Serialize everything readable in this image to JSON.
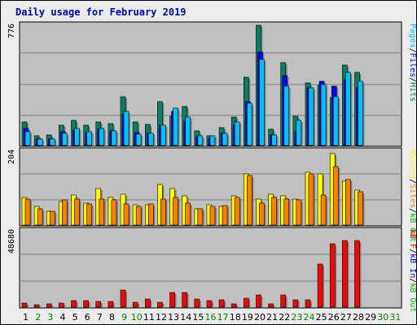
{
  "chart_data": {
    "type": "bar",
    "title": "Daily usage for February 2019",
    "days": [
      "1",
      "2",
      "3",
      "4",
      "5",
      "6",
      "7",
      "8",
      "9",
      "10",
      "11",
      "12",
      "13",
      "14",
      "15",
      "16",
      "17",
      "18",
      "19",
      "20",
      "21",
      "22",
      "23",
      "24",
      "25",
      "26",
      "27",
      "28",
      "29",
      "30",
      "31"
    ],
    "weekend_days": [
      2,
      3,
      9,
      10,
      16,
      17,
      23,
      24,
      30,
      31
    ],
    "colors": {
      "pages": "#00c0ff",
      "files": "#0000ff",
      "hits": "#008060",
      "sites": "#ff8000",
      "visits": "#ffff00",
      "kbf": "#ff0000",
      "kbin": "#0000ff",
      "kbout": "#00c000",
      "title": "#0000a0",
      "plot_bg": "#c0c0c0",
      "frame_bg": "#ececec",
      "weekday_label": "#000000",
      "weekend_label": "#008000"
    },
    "panels": [
      {
        "max_label": "776",
        "max": 776,
        "legend": [
          {
            "text": "Pages",
            "color": "#00c0ff"
          },
          {
            "text": "/",
            "color": "#000000"
          },
          {
            "text": "Files",
            "color": "#0000ff"
          },
          {
            "text": "/",
            "color": "#000000"
          },
          {
            "text": "Hits",
            "color": "#008060"
          }
        ],
        "series": [
          {
            "name": "Hits",
            "color": "#008060",
            "values": [
              150,
              60,
              70,
              130,
              160,
              130,
              150,
              140,
              310,
              150,
              135,
              280,
              190,
              250,
              95,
              65,
              115,
              180,
              440,
              770,
              105,
              530,
              190,
              400,
              385,
              305,
              515,
              470,
              0,
              0,
              0
            ]
          },
          {
            "name": "Files",
            "color": "#0000ff",
            "values": [
              110,
              40,
              40,
              90,
              100,
              85,
              105,
              95,
              200,
              85,
              80,
              130,
              220,
              155,
              55,
              45,
              80,
              130,
              280,
              600,
              70,
              450,
              90,
              370,
              410,
              380,
              420,
              370,
              0,
              0,
              0
            ]
          },
          {
            "name": "Pages",
            "color": "#00c0ff",
            "values": [
              90,
              40,
              40,
              80,
              110,
              90,
              110,
              95,
              220,
              75,
              80,
              130,
              240,
              180,
              60,
              60,
              80,
              150,
              270,
              550,
              70,
              380,
              160,
              370,
              390,
              310,
              470,
              410,
              0,
              0,
              0
            ]
          }
        ]
      },
      {
        "max_label": "204",
        "max": 204,
        "legend": [
          {
            "text": "Visits",
            "color": "#ffff00"
          },
          {
            "text": "/",
            "color": "#000000"
          },
          {
            "text": "Sites",
            "color": "#ff8000"
          },
          {
            "text": "/",
            "color": "#000000"
          },
          {
            "text": "kB Out",
            "color": "#00c000"
          }
        ],
        "series": [
          {
            "name": "Visits",
            "color": "#ffff00",
            "values": [
              75,
              50,
              38,
              65,
              83,
              60,
              100,
              76,
              84,
              55,
              55,
              110,
              100,
              80,
              45,
              55,
              50,
              80,
              140,
              70,
              85,
              80,
              72,
              145,
              140,
              195,
              120,
              95,
              0,
              0,
              0
            ]
          },
          {
            "name": "Sites",
            "color": "#ff8000",
            "values": [
              70,
              45,
              38,
              68,
              70,
              58,
              70,
              68,
              58,
              50,
              58,
              70,
              75,
              60,
              45,
              50,
              54,
              75,
              135,
              60,
              75,
              72,
              68,
              140,
              82,
              160,
              125,
              90,
              0,
              0,
              0
            ]
          }
        ]
      },
      {
        "max_label": "48680",
        "max": 48680,
        "legend": [
          {
            "text": "kB F",
            "color": "#ff0000"
          },
          {
            "text": "/",
            "color": "#000000"
          },
          {
            "text": "kB In",
            "color": "#0000ff"
          },
          {
            "text": "/",
            "color": "#000000"
          },
          {
            "text": "kB Out",
            "color": "#00c000"
          }
        ],
        "series": [
          {
            "name": "kB F",
            "color": "#ff0000",
            "values": [
              2700,
              1300,
              2000,
              2500,
              4000,
              4000,
              3500,
              3400,
              11000,
              2900,
              5200,
              3000,
              9400,
              9400,
              5000,
              4000,
              4800,
              2300,
              5600,
              7800,
              1800,
              7900,
              4800,
              4800,
              27000,
              40000,
              42000,
              42000,
              0,
              0,
              0
            ]
          }
        ]
      }
    ]
  }
}
